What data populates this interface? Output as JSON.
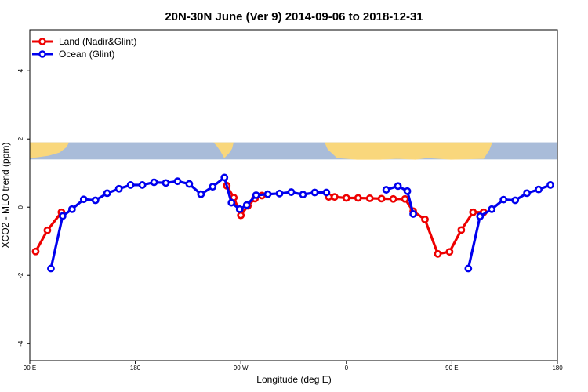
{
  "chart_data": {
    "type": "line",
    "title": "20N-30N June (Ver 9)   2014-09-06 to 2018-12-31",
    "xlabel": "Longitude (deg E)",
    "ylabel": "XCO2 - MLO trend (ppm)",
    "xlim": [
      90,
      540
    ],
    "ylim": [
      -4.5,
      5.2
    ],
    "x_ticks": [
      {
        "value": 90,
        "label": "90 E"
      },
      {
        "value": 180,
        "label": "180"
      },
      {
        "value": 270,
        "label": "90 W"
      },
      {
        "value": 360,
        "label": "0"
      },
      {
        "value": 450,
        "label": "90 E"
      },
      {
        "value": 540,
        "label": "180"
      }
    ],
    "y_ticks": [
      {
        "value": -4,
        "label": "-4"
      },
      {
        "value": -2,
        "label": "-2"
      },
      {
        "value": 0,
        "label": "0"
      },
      {
        "value": 2,
        "label": "2"
      },
      {
        "value": 4,
        "label": "4"
      }
    ],
    "legend_position": "top-left",
    "map_strip": {
      "ymin": 1.4,
      "ymax": 1.9,
      "ocean_color": "#a9bcd9",
      "land_color": "#f9d77c"
    },
    "series": [
      {
        "name": "Land (Nadir&Glint)",
        "color": "#ee0000",
        "segments": [
          {
            "x": [
              95,
              105,
              117
            ],
            "y": [
              -1.3,
              -0.68,
              -0.15
            ]
          },
          {
            "x": [
              258,
              264,
              270,
              276,
              282,
              288
            ],
            "y": [
              0.63,
              0.28,
              -0.24,
              0.04,
              0.25,
              0.34
            ]
          },
          {
            "x": [
              345,
              350,
              360,
              370,
              380,
              390,
              400,
              410,
              417,
              427,
              438,
              448,
              458,
              468,
              477
            ],
            "y": [
              0.3,
              0.3,
              0.27,
              0.27,
              0.26,
              0.25,
              0.24,
              0.24,
              -0.12,
              -0.36,
              -1.37,
              -1.31,
              -0.67,
              -0.15,
              -0.15
            ]
          }
        ]
      },
      {
        "name": "Ocean (Glint)",
        "color": "#0000ee",
        "segments": [
          {
            "x": [
              108,
              118,
              126,
              136,
              146,
              156,
              166,
              176,
              186,
              196,
              206,
              216,
              226,
              236,
              246,
              256,
              262,
              269,
              275,
              283,
              293,
              303,
              313,
              323,
              333,
              343
            ],
            "y": [
              -1.8,
              -0.26,
              -0.06,
              0.23,
              0.2,
              0.41,
              0.54,
              0.65,
              0.65,
              0.73,
              0.71,
              0.76,
              0.68,
              0.38,
              0.6,
              0.87,
              0.13,
              -0.06,
              0.06,
              0.35,
              0.38,
              0.4,
              0.44,
              0.37,
              0.43,
              0.43
            ]
          },
          {
            "x": [
              394,
              404,
              412,
              417
            ],
            "y": [
              0.51,
              0.62,
              0.47,
              -0.2
            ]
          },
          {
            "x": [
              464,
              474,
              484,
              494,
              504,
              514,
              524,
              534
            ],
            "y": [
              -1.8,
              -0.27,
              -0.06,
              0.22,
              0.2,
              0.41,
              0.52,
              0.65
            ]
          }
        ]
      }
    ]
  }
}
